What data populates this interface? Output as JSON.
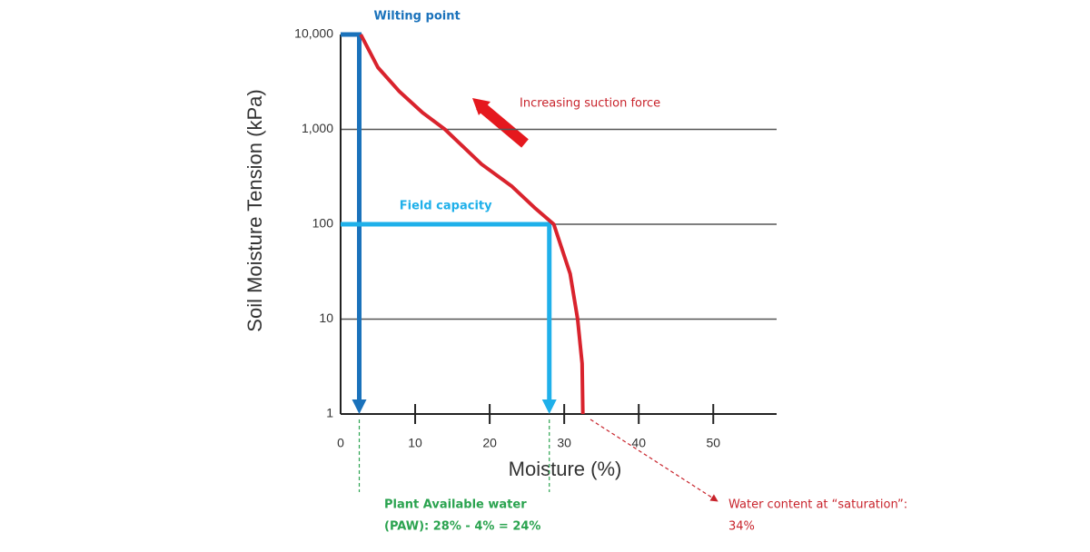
{
  "chart_data": {
    "type": "line",
    "y_label": "Soil Moisture Tension (kPa)",
    "x_label": "Moisture (%)",
    "log_y": true,
    "grid": true,
    "xlim": [
      0,
      58.5
    ],
    "ylim": [
      1,
      10000
    ],
    "xticks": [
      0,
      10,
      20,
      30,
      40,
      50
    ],
    "yticks": [
      1,
      10,
      100,
      {
        "value": 1000,
        "label": "1,000"
      },
      {
        "value": 10000,
        "label": "10,000"
      }
    ],
    "series": [
      {
        "color": "#d9232d",
        "x": [
          2.7,
          5,
          7.9,
          11,
          14,
          18.9,
          23,
          26,
          28.6,
          30.8,
          31.8,
          32.4,
          32.5
        ],
        "values": [
          10000,
          4500,
          2500,
          1500,
          1000,
          430,
          250,
          150,
          100,
          30,
          10,
          3.4,
          1
        ]
      }
    ],
    "markers": [
      {
        "label": "Wilting point",
        "x": 2.5,
        "y": 10000,
        "color": "#1a72bb"
      },
      {
        "label": "Field capacity",
        "x": 28,
        "y": 100,
        "color": "#1fb0ea"
      }
    ],
    "annotations": {
      "suction": "Increasing suction force",
      "paw": [
        "Plant Available water",
        "(PAW): 28% - 4% = 24%"
      ],
      "saturation": [
        "Water content at “saturation”:",
        "34%"
      ]
    }
  }
}
